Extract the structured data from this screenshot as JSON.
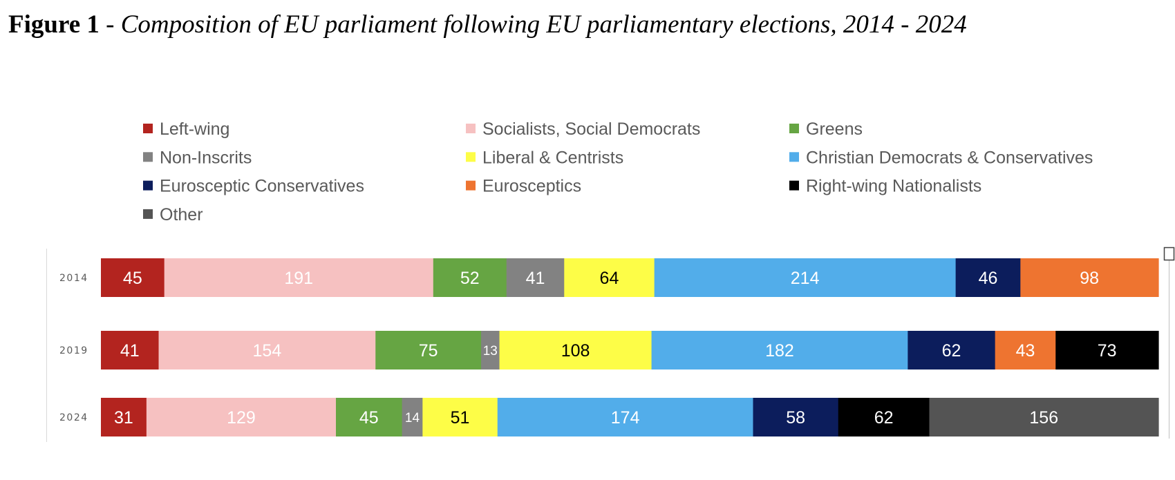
{
  "heading": {
    "label": "Figure 1",
    "separator": " - ",
    "title": "Composition of EU parliament following EU parliamentary elections, 2014 - 2024"
  },
  "chart_data": {
    "type": "bar",
    "orientation": "horizontal",
    "stacked": true,
    "categories": [
      "2014",
      "2019",
      "2024"
    ],
    "legend_position": "top",
    "grid": false,
    "series": [
      {
        "name": "Left-wing",
        "color": "#b3241f",
        "label_color": "#ffffff",
        "values": [
          45,
          41,
          31
        ]
      },
      {
        "name": "Socialists, Social Democrats",
        "color": "#f6c1c1",
        "label_color": "#ffffff",
        "values": [
          191,
          154,
          129
        ]
      },
      {
        "name": "Greens",
        "color": "#66a543",
        "label_color": "#ffffff",
        "values": [
          52,
          75,
          45
        ]
      },
      {
        "name": "Non-Inscrits",
        "color": "#828282",
        "label_color": "#ffffff",
        "values": [
          41,
          13,
          14
        ]
      },
      {
        "name": "Liberal & Centrists",
        "color": "#fdfd47",
        "label_color": "#000000",
        "values": [
          64,
          108,
          51
        ]
      },
      {
        "name": "Christian Democrats & Conservatives",
        "color": "#52adea",
        "label_color": "#ffffff",
        "values": [
          214,
          182,
          174
        ]
      },
      {
        "name": "Eurosceptic Conservatives",
        "color": "#0c1d5c",
        "label_color": "#ffffff",
        "values": [
          46,
          62,
          58
        ]
      },
      {
        "name": "Eurosceptics",
        "color": "#ee7430",
        "label_color": "#ffffff",
        "values": [
          98,
          43,
          null
        ]
      },
      {
        "name": "Right-wing Nationalists",
        "color": "#000000",
        "label_color": "#ffffff",
        "values": [
          null,
          73,
          62
        ]
      },
      {
        "name": "Other",
        "color": "#545454",
        "label_color": "#ffffff",
        "values": [
          null,
          null,
          156
        ]
      }
    ]
  }
}
